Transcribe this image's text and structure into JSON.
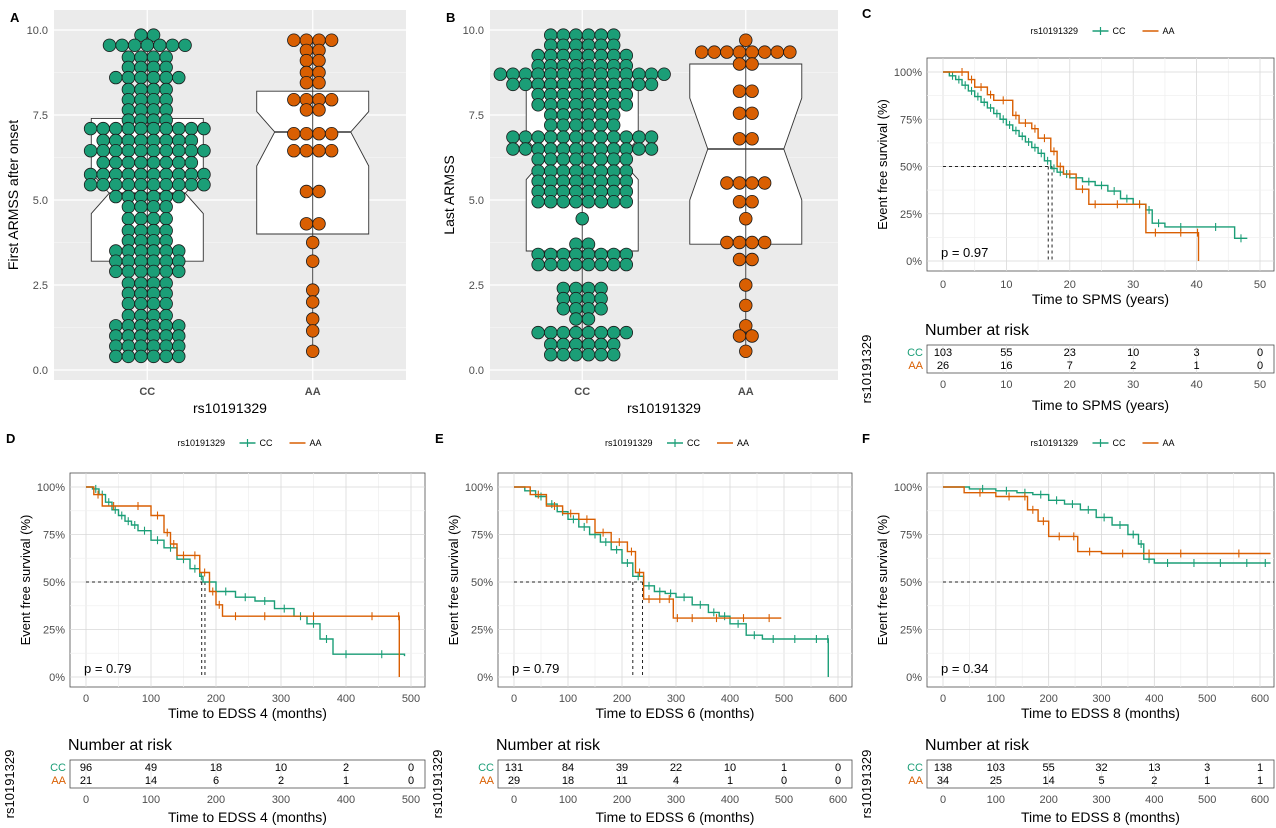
{
  "colors": {
    "cc": "#1B9E77",
    "aa": "#D95F02",
    "panel_bg": "#EBEBEB",
    "grid": "#D9D9D9",
    "axis_text": "#4D4D4D"
  },
  "chart_data": [
    {
      "panel": "A",
      "type": "scatter",
      "subtype": "dot-plot with notched boxplot",
      "xlabel": "rs10191329",
      "ylabel": "First ARMSS after onset",
      "categories": [
        "CC",
        "AA"
      ],
      "ylim": [
        0,
        10
      ],
      "yticks": [
        "0.0",
        "2.5",
        "5.0",
        "7.5",
        "10.0"
      ],
      "grid": true,
      "boxes": [
        {
          "group": "CC",
          "q1": 3.2,
          "median": 5.2,
          "q3": 7.4,
          "notch_low": 4.6,
          "notch_high": 5.8
        },
        {
          "group": "AA",
          "q1": 4.0,
          "median": 7.0,
          "q3": 8.2,
          "notch_low": 6.0,
          "notch_high": 7.6
        }
      ],
      "series": [
        {
          "name": "CC",
          "rows": [
            [
              9.85,
              2
            ],
            [
              9.55,
              7
            ],
            [
              9.2,
              4
            ],
            [
              8.9,
              4
            ],
            [
              8.6,
              6
            ],
            [
              8.25,
              4
            ],
            [
              7.95,
              4
            ],
            [
              7.65,
              4
            ],
            [
              7.35,
              4
            ],
            [
              7.1,
              10
            ],
            [
              6.75,
              8
            ],
            [
              6.45,
              10
            ],
            [
              6.1,
              8
            ],
            [
              5.75,
              10
            ],
            [
              5.45,
              10
            ],
            [
              5.1,
              6
            ],
            [
              4.8,
              4
            ],
            [
              4.45,
              4
            ],
            [
              4.1,
              4
            ],
            [
              3.8,
              4
            ],
            [
              3.5,
              6
            ],
            [
              3.2,
              6
            ],
            [
              2.9,
              6
            ],
            [
              2.55,
              4
            ],
            [
              2.25,
              4
            ],
            [
              1.95,
              4
            ],
            [
              1.6,
              4
            ],
            [
              1.3,
              6
            ],
            [
              1.0,
              6
            ],
            [
              0.7,
              6
            ],
            [
              0.4,
              6
            ]
          ]
        },
        {
          "name": "AA",
          "rows": [
            [
              9.7,
              4
            ],
            [
              9.4,
              2
            ],
            [
              9.1,
              2
            ],
            [
              8.75,
              2
            ],
            [
              8.45,
              2
            ],
            [
              7.95,
              4
            ],
            [
              7.65,
              2
            ],
            [
              6.95,
              4
            ],
            [
              6.45,
              4
            ],
            [
              5.25,
              2
            ],
            [
              4.3,
              2
            ],
            [
              3.75,
              1
            ],
            [
              3.2,
              1
            ],
            [
              2.35,
              1
            ],
            [
              2.0,
              1
            ],
            [
              1.5,
              1
            ],
            [
              1.15,
              1
            ],
            [
              0.55,
              1
            ]
          ]
        }
      ]
    },
    {
      "panel": "B",
      "type": "scatter",
      "subtype": "dot-plot with notched boxplot",
      "xlabel": "rs10191329",
      "ylabel": "Last ARMSS",
      "categories": [
        "CC",
        "AA"
      ],
      "ylim": [
        0,
        10
      ],
      "yticks": [
        "0.0",
        "2.5",
        "5.0",
        "7.5",
        "10.0"
      ],
      "grid": true,
      "boxes": [
        {
          "group": "CC",
          "q1": 3.5,
          "median": 6.2,
          "q3": 8.3,
          "notch_low": 5.6,
          "notch_high": 6.8
        },
        {
          "group": "AA",
          "q1": 3.7,
          "median": 6.5,
          "q3": 9.0,
          "notch_low": 5.0,
          "notch_high": 8.0
        }
      ],
      "series": [
        {
          "name": "CC",
          "rows": [
            [
              9.85,
              6
            ],
            [
              9.55,
              6
            ],
            [
              9.25,
              8
            ],
            [
              8.95,
              8
            ],
            [
              8.7,
              14
            ],
            [
              8.4,
              12
            ],
            [
              8.1,
              8
            ],
            [
              7.8,
              8
            ],
            [
              7.5,
              6
            ],
            [
              7.2,
              6
            ],
            [
              6.85,
              12
            ],
            [
              6.5,
              12
            ],
            [
              6.2,
              8
            ],
            [
              5.85,
              8
            ],
            [
              5.55,
              8
            ],
            [
              5.25,
              8
            ],
            [
              4.95,
              8
            ],
            [
              4.45,
              1
            ],
            [
              3.7,
              2
            ],
            [
              3.4,
              8
            ],
            [
              3.1,
              8
            ],
            [
              2.4,
              4
            ],
            [
              2.1,
              4
            ],
            [
              1.8,
              4
            ],
            [
              1.5,
              2
            ],
            [
              1.1,
              8
            ],
            [
              0.75,
              6
            ],
            [
              0.45,
              6
            ]
          ]
        },
        {
          "name": "AA",
          "rows": [
            [
              9.7,
              1
            ],
            [
              9.35,
              8
            ],
            [
              9.0,
              2
            ],
            [
              8.2,
              2
            ],
            [
              7.55,
              2
            ],
            [
              6.8,
              2
            ],
            [
              5.5,
              4
            ],
            [
              4.95,
              2
            ],
            [
              4.45,
              1
            ],
            [
              3.75,
              4
            ],
            [
              3.25,
              2
            ],
            [
              2.5,
              1
            ],
            [
              1.9,
              1
            ],
            [
              1.3,
              1
            ],
            [
              1.0,
              2
            ],
            [
              0.55,
              1
            ]
          ]
        }
      ]
    },
    {
      "panel": "C",
      "type": "line",
      "subtype": "Kaplan-Meier survival curve",
      "legend_title": "rs10191329",
      "legend_position": "top",
      "xlabel": "Time to SPMS (years)",
      "ylabel": "Event free survival (%)",
      "xlim": [
        0,
        50
      ],
      "xticks": [
        "0",
        "10",
        "20",
        "30",
        "40",
        "50"
      ],
      "ylim": [
        0,
        100
      ],
      "yticks": [
        "0%",
        "25%",
        "50%",
        "75%",
        "100%"
      ],
      "pvalue": "p = 0.97",
      "median_x": [
        16.6,
        17.2
      ],
      "series": [
        {
          "name": "CC",
          "x": [
            0,
            1,
            2,
            3,
            4,
            5,
            6,
            7,
            8,
            9,
            10,
            11,
            12,
            13,
            14,
            15,
            16,
            17,
            18,
            19,
            20,
            22,
            24,
            26,
            28,
            30,
            32,
            33,
            35,
            40,
            46,
            48
          ],
          "y": [
            100,
            98,
            96,
            93,
            90,
            87,
            84,
            81,
            78,
            75,
            72,
            69,
            66,
            63,
            60,
            57,
            53,
            49,
            47,
            46,
            44,
            42,
            40,
            37,
            33,
            30,
            27,
            20,
            18,
            18,
            12,
            12
          ]
        },
        {
          "name": "AA",
          "x": [
            0,
            2,
            4,
            5,
            7,
            8,
            11,
            12,
            14,
            15,
            17,
            18,
            19,
            21,
            23,
            25,
            30,
            32,
            35,
            40,
            40.3
          ],
          "y": [
            100,
            100,
            96,
            92,
            88,
            85,
            77,
            73,
            70,
            65,
            58,
            50,
            46,
            38,
            30,
            30,
            30,
            15,
            15,
            15,
            0
          ]
        }
      ],
      "risk_table": {
        "title": "Number at risk",
        "ylabel": "rs10191329",
        "groups": [
          "CC",
          "AA"
        ],
        "times": [
          "0",
          "10",
          "20",
          "30",
          "40",
          "50"
        ],
        "counts": [
          [
            103,
            55,
            23,
            10,
            3,
            0
          ],
          [
            26,
            16,
            7,
            2,
            1,
            0
          ]
        ],
        "xlabel": "Time to SPMS (years)"
      }
    },
    {
      "panel": "D",
      "type": "line",
      "subtype": "Kaplan-Meier survival curve",
      "legend_title": "rs10191329",
      "legend_position": "top",
      "xlabel": "Time to EDSS 4 (months)",
      "ylabel": "Event free survival (%)",
      "xlim": [
        0,
        500
      ],
      "xticks": [
        "0",
        "100",
        "200",
        "300",
        "400",
        "500"
      ],
      "ylim": [
        0,
        100
      ],
      "yticks": [
        "0%",
        "25%",
        "50%",
        "75%",
        "100%"
      ],
      "pvalue": "p = 0.79",
      "median_x": [
        178,
        183
      ],
      "series": [
        {
          "name": "CC",
          "x": [
            0,
            10,
            20,
            30,
            40,
            50,
            60,
            70,
            80,
            100,
            120,
            140,
            160,
            175,
            180,
            200,
            230,
            260,
            290,
            320,
            340,
            360,
            380,
            420,
            490
          ],
          "y": [
            100,
            99,
            96,
            92,
            88,
            85,
            82,
            80,
            77,
            72,
            68,
            62,
            57,
            53,
            50,
            45,
            42,
            40,
            36,
            32,
            28,
            20,
            12,
            12,
            11
          ]
        },
        {
          "name": "AA",
          "x": [
            0,
            12,
            25,
            60,
            100,
            120,
            130,
            140,
            160,
            175,
            190,
            200,
            210,
            250,
            300,
            400,
            480,
            482
          ],
          "y": [
            100,
            96,
            90,
            90,
            85,
            76,
            70,
            64,
            64,
            55,
            45,
            38,
            32,
            32,
            32,
            32,
            32,
            0
          ]
        }
      ],
      "risk_table": {
        "title": "Number at risk",
        "ylabel": "rs10191329",
        "groups": [
          "CC",
          "AA"
        ],
        "times": [
          "0",
          "100",
          "200",
          "300",
          "400",
          "500"
        ],
        "counts": [
          [
            96,
            49,
            18,
            10,
            2,
            0
          ],
          [
            21,
            14,
            6,
            2,
            1,
            0
          ]
        ],
        "xlabel": "Time to EDSS 4 (months)"
      }
    },
    {
      "panel": "E",
      "type": "line",
      "subtype": "Kaplan-Meier survival curve",
      "legend_title": "rs10191329",
      "legend_position": "top",
      "xlabel": "Time to EDSS 6 (months)",
      "ylabel": "Event free survival (%)",
      "xlim": [
        0,
        600
      ],
      "xticks": [
        "0",
        "100",
        "200",
        "300",
        "400",
        "500",
        "600"
      ],
      "ylim": [
        0,
        100
      ],
      "yticks": [
        "0%",
        "25%",
        "50%",
        "75%",
        "100%"
      ],
      "pvalue": "p = 0.79",
      "median_x": [
        220,
        238
      ],
      "series": [
        {
          "name": "CC",
          "x": [
            0,
            20,
            40,
            60,
            80,
            100,
            120,
            140,
            160,
            180,
            200,
            220,
            240,
            260,
            280,
            300,
            330,
            360,
            380,
            400,
            430,
            460,
            500,
            540,
            580,
            582
          ],
          "y": [
            100,
            98,
            95,
            91,
            87,
            83,
            79,
            75,
            71,
            67,
            60,
            53,
            48,
            45,
            44,
            42,
            38,
            34,
            32,
            28,
            22,
            20,
            20,
            20,
            20,
            0
          ]
        },
        {
          "name": "AA",
          "x": [
            0,
            30,
            60,
            90,
            120,
            150,
            180,
            210,
            225,
            240,
            260,
            280,
            295,
            310,
            350,
            400,
            450,
            495
          ],
          "y": [
            100,
            96,
            90,
            86,
            83,
            76,
            71,
            66,
            55,
            41,
            41,
            41,
            31,
            31,
            31,
            31,
            31,
            31
          ]
        }
      ],
      "risk_table": {
        "title": "Number at risk",
        "ylabel": "rs10191329",
        "groups": [
          "CC",
          "AA"
        ],
        "times": [
          "0",
          "100",
          "200",
          "300",
          "400",
          "500",
          "600"
        ],
        "counts": [
          [
            131,
            84,
            39,
            22,
            10,
            1,
            0
          ],
          [
            29,
            18,
            11,
            4,
            1,
            0,
            0
          ]
        ],
        "xlabel": "Time to EDSS 6 (months)"
      }
    },
    {
      "panel": "F",
      "type": "line",
      "subtype": "Kaplan-Meier survival curve",
      "legend_title": "rs10191329",
      "legend_position": "top",
      "xlabel": "Time to EDSS 8 (months)",
      "ylabel": "Event free survival (%)",
      "xlim": [
        0,
        600
      ],
      "xticks": [
        "0",
        "100",
        "200",
        "300",
        "400",
        "500",
        "600"
      ],
      "ylim": [
        0,
        100
      ],
      "yticks": [
        "0%",
        "25%",
        "50%",
        "75%",
        "100%"
      ],
      "pvalue": "p = 0.34",
      "median_x": [],
      "series": [
        {
          "name": "CC",
          "x": [
            0,
            50,
            100,
            140,
            170,
            200,
            230,
            260,
            290,
            320,
            350,
            370,
            380,
            400,
            450,
            500,
            550,
            600,
            620
          ],
          "y": [
            100,
            99,
            98,
            97,
            96,
            93,
            91,
            88,
            84,
            80,
            75,
            70,
            62,
            60,
            60,
            60,
            60,
            60,
            60
          ]
        },
        {
          "name": "AA",
          "x": [
            0,
            40,
            100,
            150,
            160,
            180,
            200,
            240,
            255,
            300,
            380,
            400,
            500,
            620
          ],
          "y": [
            100,
            97,
            95,
            95,
            88,
            82,
            74,
            74,
            66,
            65,
            65,
            65,
            65,
            65
          ]
        }
      ],
      "risk_table": {
        "title": "Number at risk",
        "ylabel": "rs10191329",
        "groups": [
          "CC",
          "AA"
        ],
        "times": [
          "0",
          "100",
          "200",
          "300",
          "400",
          "500",
          "600"
        ],
        "counts": [
          [
            138,
            103,
            55,
            32,
            13,
            3,
            1
          ],
          [
            34,
            25,
            14,
            5,
            2,
            1,
            1
          ]
        ],
        "xlabel": "Time to EDSS 8 (months)"
      }
    }
  ]
}
